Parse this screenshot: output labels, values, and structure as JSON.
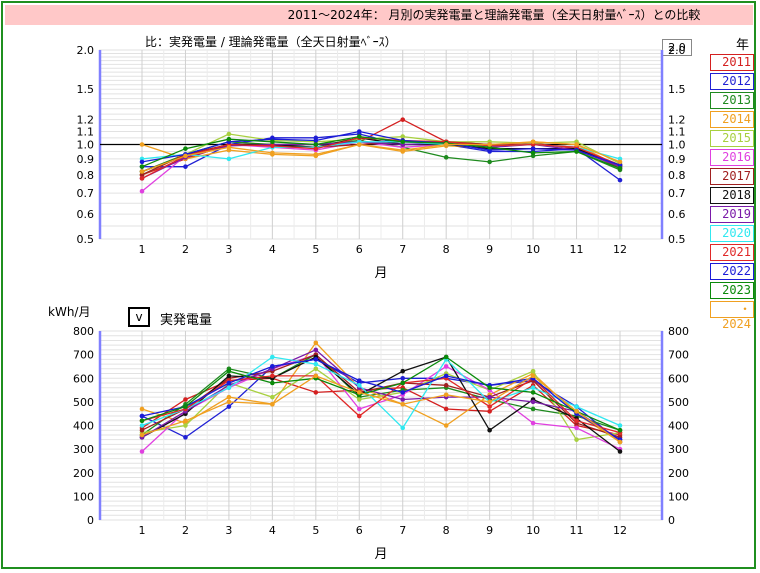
{
  "header": {
    "title": "2011～2024年： 月別の実発電量と理論発電量（全天日射量ﾍﾞｰｽ）との比較"
  },
  "legend": {
    "title": "年",
    "items": [
      {
        "label": "2011",
        "color": "#d42020"
      },
      {
        "label": "2012",
        "color": "#2020d4"
      },
      {
        "label": "2013",
        "color": "#1e8a1e"
      },
      {
        "label": "2014",
        "color": "#f0a020"
      },
      {
        "label": "2015",
        "color": "#a8d040"
      },
      {
        "label": "2016",
        "color": "#e040e0"
      },
      {
        "label": "2017",
        "color": "#a02020"
      },
      {
        "label": "2018",
        "color": "#111111"
      },
      {
        "label": "2019",
        "color": "#7a1aa8"
      },
      {
        "label": "2020",
        "color": "#30e8f0"
      },
      {
        "label": "2021",
        "color": "#e02828"
      },
      {
        "label": "2022",
        "color": "#1a1ad8"
      },
      {
        "label": "2023",
        "color": "#0a8a0a"
      },
      {
        "label": "・2024",
        "color": "#f0a020"
      }
    ]
  },
  "controls": {
    "unit_label": "kWh/月",
    "selector_value": "v",
    "selector_label": "実発電量",
    "top_value_box": "2.0"
  },
  "chart_data": [
    {
      "type": "line",
      "title": "比：実発電量 / 理論発電量（全天日射量ﾍﾞｰｽ）",
      "xlabel": "月",
      "ylabel": "",
      "x": [
        1,
        2,
        3,
        4,
        5,
        6,
        7,
        8,
        9,
        10,
        11,
        12
      ],
      "x_tick_labels": [
        "1",
        "2",
        "3",
        "4",
        "5",
        "6",
        "7",
        "8",
        "9",
        "10",
        "11",
        "12"
      ],
      "y_scale": "log",
      "ylim": [
        0.5,
        2.0
      ],
      "y_ticks": [
        0.5,
        0.6,
        0.7,
        0.8,
        0.9,
        1.0,
        1.1,
        1.2,
        1.5,
        2.0
      ],
      "y_tick_labels": [
        "0.5",
        "0.6",
        "0.7",
        "0.8",
        "0.9",
        "1.0",
        "1.1",
        "1.2",
        "1.5",
        "2.0"
      ],
      "reference_line": 1.0,
      "grid": true,
      "series": [
        {
          "name": "2011",
          "values": [
            0.8,
            0.9,
            1.0,
            1.0,
            0.98,
            1.02,
            1.2,
            1.02,
            1.0,
            1.01,
            0.97,
            0.85
          ]
        },
        {
          "name": "2012",
          "values": [
            0.85,
            0.85,
            1.0,
            1.05,
            1.05,
            1.08,
            1.0,
            1.0,
            0.95,
            0.95,
            0.97,
            0.77
          ]
        },
        {
          "name": "2013",
          "values": [
            0.82,
            0.93,
            1.02,
            1.0,
            1.0,
            1.03,
            0.98,
            0.91,
            0.88,
            0.92,
            0.95,
            0.83
          ]
        },
        {
          "name": "2014",
          "values": [
            1.0,
            0.9,
            0.96,
            0.93,
            0.92,
            1.0,
            0.95,
            0.99,
            0.98,
            1.02,
            1.0,
            0.85
          ]
        },
        {
          "name": "2015",
          "values": [
            0.8,
            0.93,
            1.08,
            1.03,
            1.02,
            1.04,
            1.06,
            1.02,
            1.02,
            1.01,
            1.02,
            0.87
          ]
        },
        {
          "name": "2016",
          "values": [
            0.71,
            0.92,
            1.0,
            0.98,
            0.96,
            1.02,
            0.98,
            1.0,
            1.0,
            1.0,
            0.98,
            0.86
          ]
        },
        {
          "name": "2017",
          "values": [
            0.8,
            0.93,
            1.0,
            0.99,
            0.98,
            1.0,
            1.02,
            1.02,
            1.0,
            1.0,
            0.98,
            0.84
          ]
        },
        {
          "name": "2018",
          "values": [
            0.82,
            0.92,
            1.0,
            1.0,
            0.98,
            1.05,
            1.0,
            1.0,
            0.97,
            0.97,
            0.97,
            0.86
          ]
        },
        {
          "name": "2019",
          "values": [
            0.78,
            0.91,
            0.99,
            1.0,
            1.0,
            1.02,
            1.0,
            1.01,
            0.98,
            1.0,
            0.96,
            0.85
          ]
        },
        {
          "name": "2020",
          "values": [
            0.9,
            0.93,
            0.9,
            0.98,
            0.98,
            1.02,
            1.02,
            1.0,
            0.99,
            1.0,
            0.98,
            0.9
          ]
        },
        {
          "name": "2021",
          "values": [
            0.78,
            0.92,
            1.0,
            0.99,
            0.97,
            1.05,
            1.03,
            1.02,
            0.99,
            1.0,
            0.98,
            0.86
          ]
        },
        {
          "name": "2022",
          "values": [
            0.88,
            0.93,
            1.02,
            1.04,
            1.03,
            1.1,
            1.03,
            1.01,
            0.96,
            0.97,
            0.96,
            0.86
          ]
        },
        {
          "name": "2023",
          "values": [
            0.85,
            0.97,
            1.04,
            1.02,
            1.0,
            1.06,
            1.02,
            1.01,
            0.98,
            0.94,
            0.95,
            0.84
          ]
        },
        {
          "name": "2024",
          "values": [
            0.82,
            0.92,
            0.98,
            0.94,
            0.93,
            1.0,
            0.96,
            1.0,
            1.0,
            1.02,
            1.0,
            0.88
          ]
        }
      ]
    },
    {
      "type": "line",
      "title": "",
      "xlabel": "月",
      "ylabel": "kWh/月",
      "x": [
        1,
        2,
        3,
        4,
        5,
        6,
        7,
        8,
        9,
        10,
        11,
        12
      ],
      "x_tick_labels": [
        "1",
        "2",
        "3",
        "4",
        "5",
        "6",
        "7",
        "8",
        "9",
        "10",
        "11",
        "12"
      ],
      "ylim": [
        0,
        800
      ],
      "y_ticks": [
        0,
        100,
        200,
        300,
        400,
        500,
        600,
        700,
        800
      ],
      "y_tick_labels": [
        "0",
        "100",
        "200",
        "300",
        "400",
        "500",
        "600",
        "700",
        "800"
      ],
      "grid": true,
      "series": [
        {
          "name": "2011",
          "values": [
            390,
            510,
            590,
            600,
            540,
            550,
            560,
            470,
            460,
            570,
            400,
            360
          ]
        },
        {
          "name": "2012",
          "values": [
            440,
            350,
            480,
            650,
            680,
            580,
            600,
            600,
            570,
            590,
            480,
            330
          ]
        },
        {
          "name": "2013",
          "values": [
            360,
            490,
            640,
            600,
            700,
            520,
            550,
            560,
            510,
            470,
            440,
            380
          ]
        },
        {
          "name": "2014",
          "values": [
            470,
            410,
            520,
            490,
            750,
            560,
            490,
            400,
            530,
            620,
            450,
            330
          ]
        },
        {
          "name": "2015",
          "values": [
            370,
            400,
            580,
            520,
            640,
            510,
            540,
            620,
            550,
            630,
            340,
            370
          ]
        },
        {
          "name": "2016",
          "values": [
            290,
            460,
            560,
            640,
            700,
            470,
            530,
            650,
            550,
            410,
            390,
            300
          ]
        },
        {
          "name": "2017",
          "values": [
            380,
            470,
            600,
            630,
            700,
            540,
            580,
            570,
            520,
            590,
            410,
            350
          ]
        },
        {
          "name": "2018",
          "values": [
            350,
            450,
            610,
            600,
            690,
            530,
            630,
            690,
            380,
            510,
            430,
            290
          ]
        },
        {
          "name": "2019",
          "values": [
            350,
            460,
            570,
            640,
            720,
            560,
            510,
            520,
            520,
            500,
            460,
            340
          ]
        },
        {
          "name": "2020",
          "values": [
            400,
            470,
            560,
            690,
            660,
            570,
            390,
            680,
            500,
            560,
            480,
            400
          ]
        },
        {
          "name": "2021",
          "values": [
            420,
            470,
            590,
            610,
            610,
            440,
            580,
            600,
            480,
            600,
            420,
            370
          ]
        },
        {
          "name": "2022",
          "values": [
            440,
            480,
            580,
            650,
            680,
            590,
            540,
            610,
            570,
            600,
            450,
            340
          ]
        },
        {
          "name": "2023",
          "values": [
            420,
            480,
            630,
            580,
            600,
            530,
            580,
            690,
            560,
            540,
            460,
            380
          ]
        },
        {
          "name": "2024",
          "values": [
            360,
            420,
            500,
            490,
            610,
            540,
            490,
            530,
            500,
            610,
            460,
            330
          ]
        }
      ]
    }
  ]
}
